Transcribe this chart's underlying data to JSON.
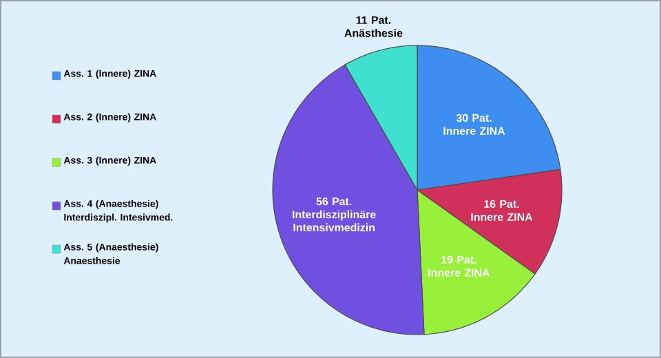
{
  "chart_data": {
    "type": "pie",
    "categories": [
      "Ass. 1 (Innere) ZINA",
      "Ass. 2 (Innere) ZINA",
      "Ass. 3 (Innere) ZINA",
      "Ass. 4 (Anaesthesie) Interdiszipl. Intesivmed.",
      "Ass. 5 (Anaesthesie) Anaesthesie"
    ],
    "values": [
      30,
      16,
      19,
      56,
      11
    ],
    "value_labels": [
      "30 Pat. Innere ZINA",
      "16 Pat. Innere ZINA",
      "19 Pat. Innere ZINA",
      "56 Pat. Interdisziplinäre Intensivmedizin",
      "11 Pat. Anästhesie"
    ],
    "colors": [
      "#3d8ef0",
      "#d0305a",
      "#99f03a",
      "#7050e0",
      "#40e0d0"
    ],
    "legend": "left"
  }
}
